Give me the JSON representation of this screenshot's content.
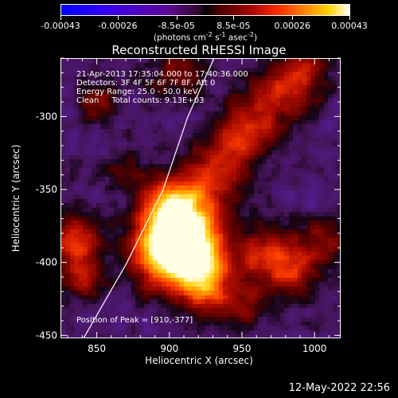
{
  "colorbar": {
    "tick_labels": [
      "-0.00043",
      "-0.00026",
      "-8.5e-05",
      "8.5e-05",
      "0.00026",
      "0.00043"
    ],
    "unit_text": "(photons cm",
    "unit_exp1": "-2",
    "unit_mid1": " s",
    "unit_exp2": "-1",
    "unit_mid2": " asec",
    "unit_exp3": "-2",
    "unit_tail": ")",
    "range": [
      -0.00043,
      0.00043
    ]
  },
  "title": "Reconstructed RHESSI Image",
  "annotations": {
    "line1": "21-Apr-2013 17:35:04.000 to 17:40:36.000",
    "line2": "Detectors: 3F 4F 5F 6F 7F 8F, Att 0",
    "line3": "Energy Range: 25.0 - 50.0 keV",
    "line4": "Clean     Total counts: 9.13E+03",
    "peak": "Position of Peak = [910,-377]"
  },
  "chart_data": {
    "type": "heatmap",
    "title": "Reconstructed RHESSI Image",
    "xlabel": "Heliocentric X (arcsec)",
    "ylabel": "Heliocentric Y (arcsec)",
    "xlim": [
      825,
      1018
    ],
    "ylim": [
      -452,
      -260
    ],
    "x_ticks": [
      850,
      900,
      950,
      1000
    ],
    "y_ticks": [
      -300,
      -350,
      -400,
      -450
    ],
    "x_tick_labels": [
      "850",
      "900",
      "950",
      "1000"
    ],
    "y_tick_labels": [
      "-300",
      "-350",
      "-400",
      "-450"
    ],
    "peak": [
      910,
      -377
    ],
    "limb_points": [
      [
        840,
        -452
      ],
      [
        870,
        -400
      ],
      [
        895,
        -350
      ],
      [
        912,
        -300
      ],
      [
        930,
        -260
      ]
    ]
  },
  "footer": {
    "timestamp": "12-May-2022 22:56"
  },
  "colors": {
    "limb_line": "#ffffff"
  }
}
